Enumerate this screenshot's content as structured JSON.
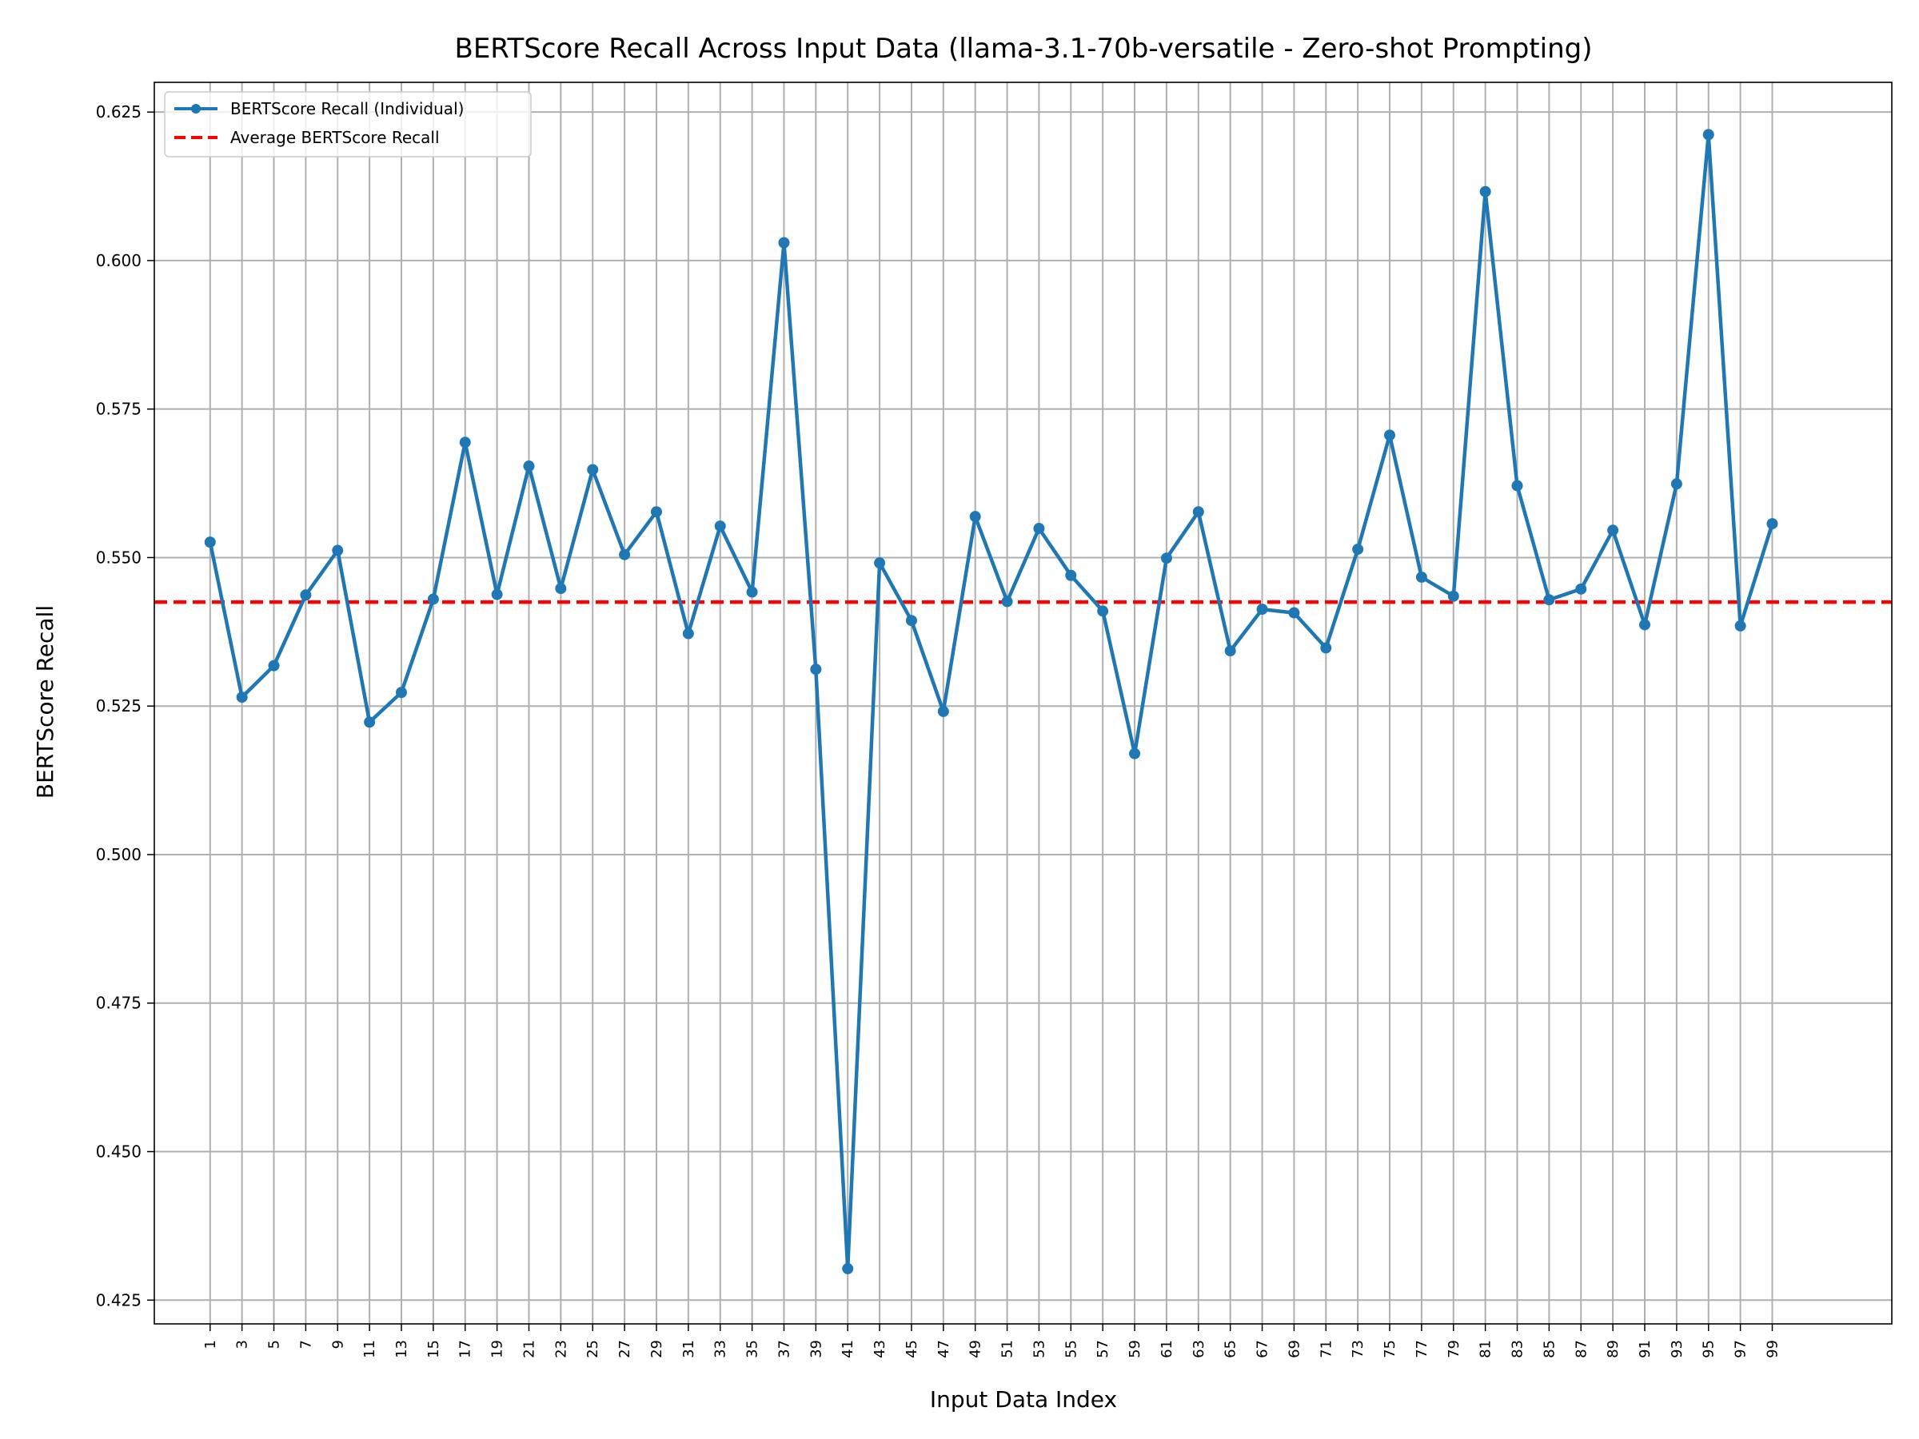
{
  "chart_data": {
    "type": "line",
    "title": "BERTScore Recall Across Input Data (llama-3.1-70b-versatile - Zero-shot Prompting)",
    "xlabel": "Input Data Index",
    "ylabel": "BERTScore Recall",
    "ylim": [
      0.421,
      0.63
    ],
    "xlim": [
      -2.5,
      106.5
    ],
    "grid": true,
    "legend_position": "top-left",
    "x_ticks": [
      1,
      3,
      5,
      7,
      9,
      11,
      13,
      15,
      17,
      19,
      21,
      23,
      25,
      27,
      29,
      31,
      33,
      35,
      37,
      39,
      41,
      43,
      45,
      47,
      49,
      51,
      53,
      55,
      57,
      59,
      61,
      63,
      65,
      67,
      69,
      71,
      73,
      75,
      77,
      79,
      81,
      83,
      85,
      87,
      89,
      91,
      93,
      95,
      97,
      99
    ],
    "y_ticks": [
      "0.425",
      "0.450",
      "0.475",
      "0.500",
      "0.525",
      "0.550",
      "0.575",
      "0.600",
      "0.625"
    ],
    "series": [
      {
        "name": "BERTScore Recall (Individual)",
        "color": "#1f77b4",
        "x": [
          1,
          3,
          5,
          7,
          9,
          11,
          13,
          15,
          17,
          19,
          21,
          23,
          25,
          27,
          29,
          31,
          33,
          35,
          37,
          39,
          41,
          43,
          45,
          47,
          49,
          51,
          53,
          55,
          57,
          59,
          61,
          63,
          65,
          67,
          69,
          71,
          73,
          75,
          77,
          79,
          81,
          83,
          85,
          87,
          89,
          91,
          93,
          95,
          97,
          99
        ],
        "values": [
          0.5526,
          0.5265,
          0.5318,
          0.5437,
          0.5512,
          0.5223,
          0.5273,
          0.543,
          0.5694,
          0.5438,
          0.5654,
          0.5448,
          0.5648,
          0.5505,
          0.5577,
          0.5372,
          0.5553,
          0.5442,
          0.603,
          0.5312,
          0.4303,
          0.5491,
          0.5394,
          0.5241,
          0.5569,
          0.5426,
          0.5549,
          0.547,
          0.541,
          0.517,
          0.5499,
          0.5577,
          0.5343,
          0.5413,
          0.5407,
          0.5348,
          0.5514,
          0.5706,
          0.5467,
          0.5435,
          0.6116,
          0.5621,
          0.5429,
          0.5447,
          0.5546,
          0.5387,
          0.5624,
          0.6212,
          0.5385,
          0.5557
        ]
      },
      {
        "name": "Average BERTScore Recall",
        "color": "#ff0000",
        "average": 0.5425
      }
    ]
  }
}
